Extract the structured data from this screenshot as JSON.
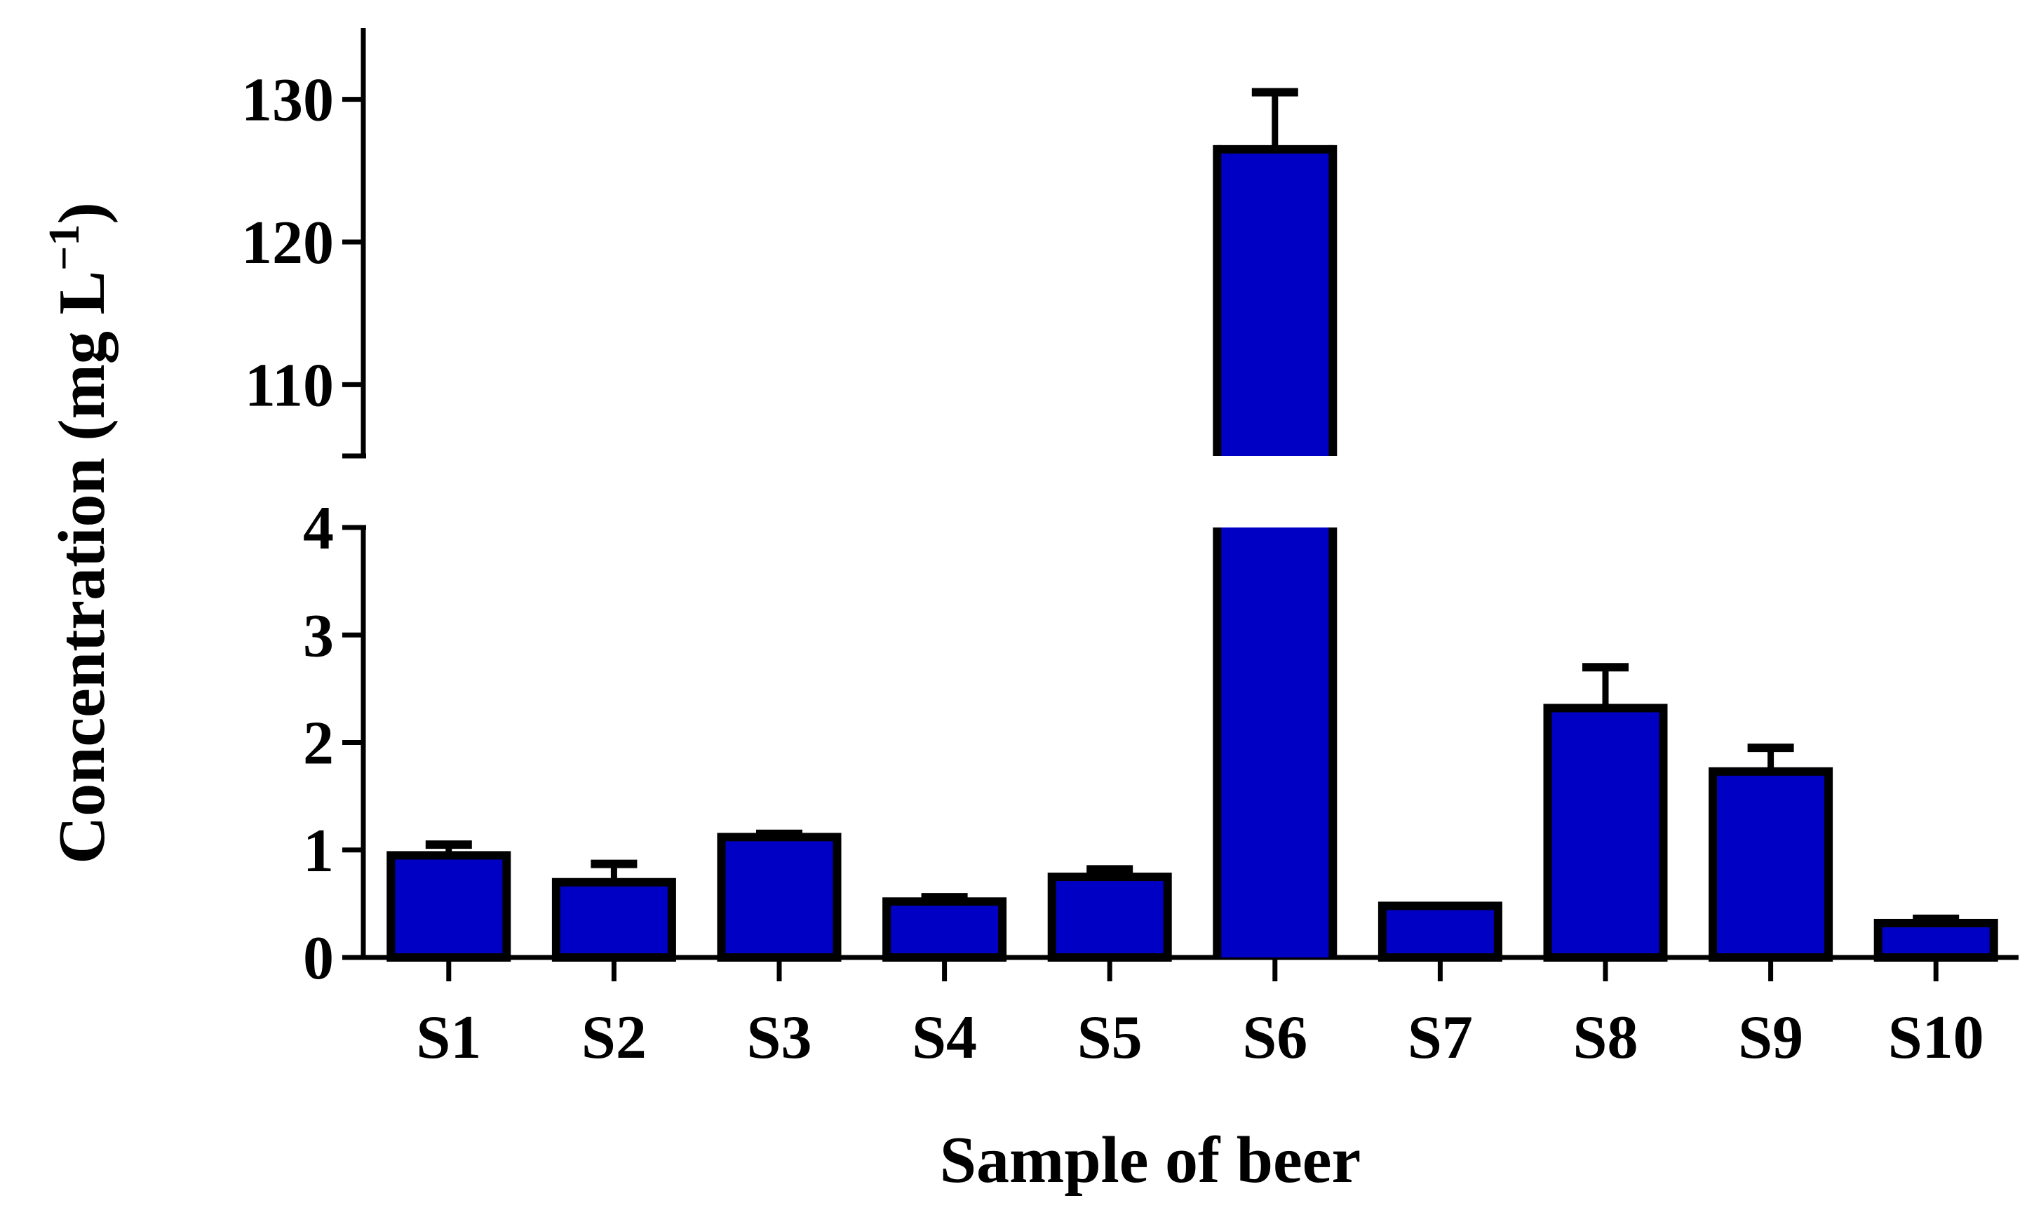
{
  "chart_data": {
    "type": "bar",
    "title": "",
    "xlabel": "Sample of beer",
    "ylabel_main": "Concentration (mg L",
    "ylabel_sup": "−1",
    "ylabel_close": ")",
    "categories": [
      "S1",
      "S2",
      "S3",
      "S4",
      "S5",
      "S6",
      "S7",
      "S8",
      "S9",
      "S10"
    ],
    "values": [
      0.95,
      0.7,
      1.12,
      0.52,
      0.75,
      126.5,
      0.48,
      2.32,
      1.73,
      0.32
    ],
    "error_upper": [
      1.05,
      0.87,
      1.15,
      0.56,
      0.82,
      130.5,
      0.48,
      2.7,
      1.95,
      0.36
    ],
    "y_axis_break": true,
    "ylim_lower": [
      0,
      4
    ],
    "ylim_upper": [
      105,
      135
    ],
    "yticks_lower": [
      "0",
      "1",
      "2",
      "3",
      "4"
    ],
    "yticks_upper": [
      "110",
      "120",
      "130"
    ],
    "grid": false,
    "legend": "none",
    "bar_color": "#0000C4",
    "edge_color": "#000000"
  }
}
